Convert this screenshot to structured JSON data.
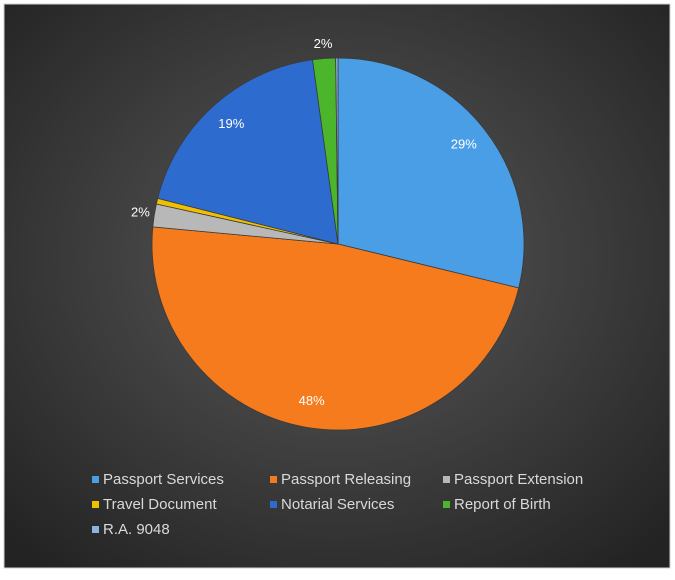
{
  "chart_data": {
    "type": "pie",
    "categories": [
      "Passport Services",
      "Passport Releasing",
      "Passport Extension",
      "Travel Document",
      "Notarial Services",
      "Report of Birth",
      "R.A. 9048"
    ],
    "values": [
      29,
      48,
      2,
      0.5,
      19,
      2,
      0.2
    ],
    "value_labels": [
      "29%",
      "48%",
      "2%",
      null,
      "19%",
      "2%",
      null
    ],
    "colors": [
      "#4a9ee6",
      "#f57b1c",
      "#b8b8b8",
      "#f0c000",
      "#2e6bcf",
      "#4bb52c",
      "#8db3e2"
    ]
  }
}
